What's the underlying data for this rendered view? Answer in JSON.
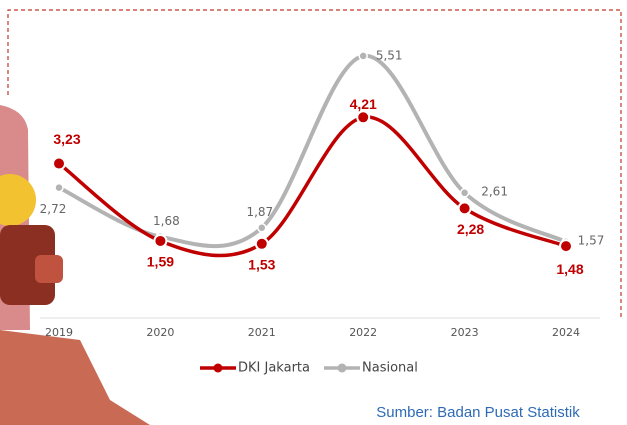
{
  "chart_data": {
    "type": "line",
    "categories": [
      "2019",
      "2020",
      "2021",
      "2022",
      "2023",
      "2024"
    ],
    "series": [
      {
        "name": "DKI Jakarta",
        "color": "#c00000",
        "values": [
          3.23,
          1.59,
          1.53,
          4.21,
          2.28,
          1.48
        ],
        "value_labels": [
          "3,23",
          "1,59",
          "1,53",
          "4,21",
          "2,28",
          "1,48"
        ]
      },
      {
        "name": "Nasional",
        "color": "#b3b3b3",
        "values": [
          2.72,
          1.68,
          1.87,
          5.51,
          2.61,
          1.57
        ],
        "value_labels": [
          "2,72",
          "1,68",
          "1,87",
          "5,51",
          "2,61",
          "1,57"
        ]
      }
    ],
    "source": "Sumber: Badan Pusat Statistik"
  }
}
